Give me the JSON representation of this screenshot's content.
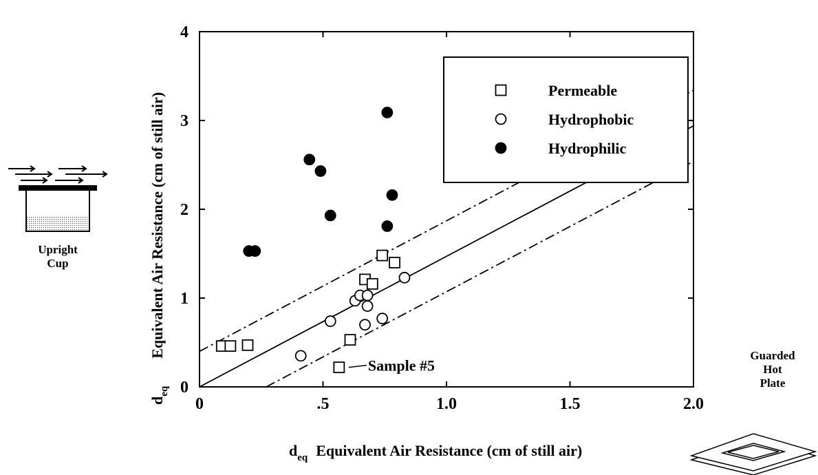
{
  "chart_data": {
    "type": "scatter",
    "xlabel_symbol": "d",
    "xlabel_subscript": "eq",
    "xlabel": "Equivalent Air Resistance (cm of still air)",
    "ylabel_symbol": "d",
    "ylabel_subscript": "eq",
    "ylabel": "Equivalent Air Resistance (cm of still air)",
    "xlim": [
      0,
      2
    ],
    "ylim": [
      0,
      4
    ],
    "xticks": [
      0,
      {
        "value": 0.5,
        "label": ".5"
      },
      {
        "value": 1,
        "label": "1.0"
      },
      {
        "value": 1.5,
        "label": "1.5"
      },
      {
        "value": 2,
        "label": "2.0"
      }
    ],
    "yticks": [
      0,
      1,
      2,
      3,
      4
    ],
    "legend_position": "upper right",
    "series": [
      {
        "name": "Permeable",
        "color": "#000000",
        "marker": "square",
        "filled": false,
        "x": [
          0.09,
          0.125,
          0.195,
          0.565,
          0.61,
          0.74,
          0.79,
          0.67,
          0.7
        ],
        "values": [
          0.46,
          0.46,
          0.47,
          0.22,
          0.53,
          1.48,
          1.4,
          1.21,
          1.16
        ]
      },
      {
        "name": "Hydrophobic",
        "color": "#000000",
        "marker": "circle",
        "filled": false,
        "x": [
          0.41,
          0.53,
          0.63,
          0.65,
          0.68,
          0.68,
          0.67,
          0.74,
          0.83
        ],
        "values": [
          0.35,
          0.74,
          0.97,
          1.03,
          1.03,
          0.91,
          0.7,
          0.77,
          1.23
        ]
      },
      {
        "name": "Hydrophilic",
        "color": "#000000",
        "marker": "circle",
        "filled": true,
        "x": [
          0.2,
          0.225,
          0.445,
          0.49,
          0.53,
          0.76,
          0.78,
          0.76
        ],
        "values": [
          1.53,
          1.53,
          2.56,
          2.43,
          1.93,
          3.09,
          2.16,
          1.81
        ]
      }
    ],
    "reference_lines": [
      {
        "style": "solid",
        "x": [
          0,
          2
        ],
        "values": [
          0,
          2.94
        ]
      },
      {
        "style": "dashdot",
        "x": [
          0,
          2
        ],
        "values": [
          0.4,
          3.34
        ]
      },
      {
        "style": "dashdot",
        "x": [
          0.27,
          2
        ],
        "values": [
          0,
          2.54
        ]
      }
    ],
    "annotation": {
      "text": "Sample #5",
      "series": 0,
      "index": 3
    },
    "left_icon_label": [
      "Upright",
      "Cup"
    ],
    "right_icon_label": [
      "Guarded",
      "Hot",
      "Plate"
    ]
  }
}
